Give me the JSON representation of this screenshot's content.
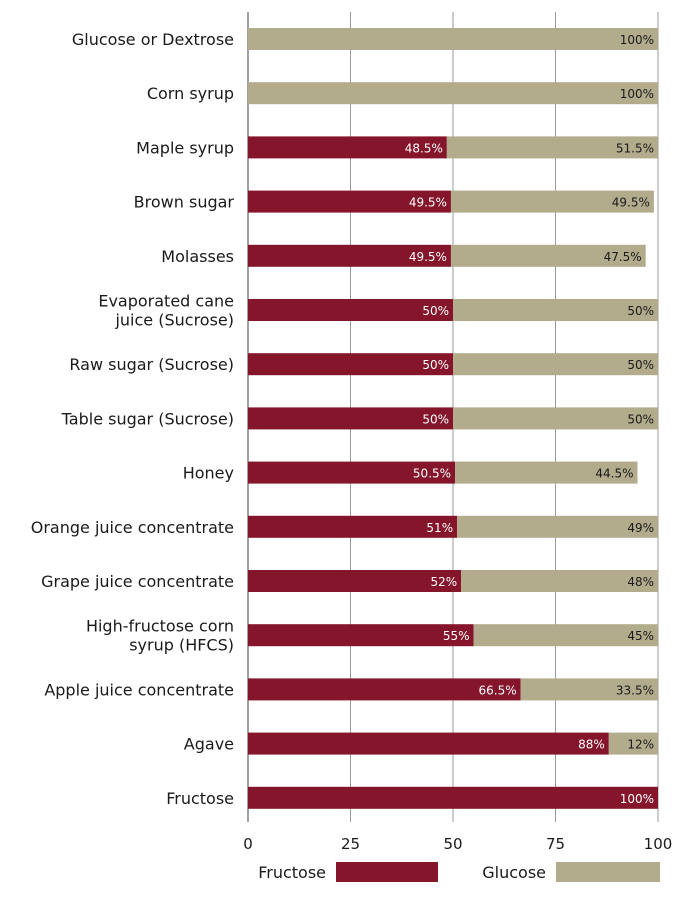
{
  "chart_data": {
    "type": "bar",
    "orientation": "horizontal",
    "stacked": true,
    "xlim": [
      0,
      100
    ],
    "xticks": [
      "0",
      "25",
      "50",
      "75",
      "100"
    ],
    "grid": true,
    "legend_position": "bottom",
    "categories": [
      "Glucose or Dextrose",
      "Corn syrup",
      "Maple syrup",
      "Brown sugar",
      "Molasses",
      "Evaporated cane juice (Sucrose)",
      "Raw sugar (Sucrose)",
      "Table sugar (Sucrose)",
      "Honey",
      "Orange juice concentrate",
      "Grape juice concentrate",
      "High-fructose corn syrup (HFCS)",
      "Apple juice concentrate",
      "Agave",
      "Fructose"
    ],
    "category_lines": [
      [
        "Glucose or Dextrose"
      ],
      [
        "Corn syrup"
      ],
      [
        "Maple syrup"
      ],
      [
        "Brown sugar"
      ],
      [
        "Molasses"
      ],
      [
        "Evaporated cane",
        "juice (Sucrose)"
      ],
      [
        "Raw sugar (Sucrose)"
      ],
      [
        "Table sugar (Sucrose)"
      ],
      [
        "Honey"
      ],
      [
        "Orange juice concentrate"
      ],
      [
        "Grape juice concentrate"
      ],
      [
        "High-fructose corn",
        "syrup (HFCS)"
      ],
      [
        "Apple juice concentrate"
      ],
      [
        "Agave"
      ],
      [
        "Fructose"
      ]
    ],
    "series": [
      {
        "name": "Fructose",
        "color": "#85152a",
        "label_color": "#ffffff",
        "values": [
          0,
          0,
          48.5,
          49.5,
          49.5,
          50,
          50,
          50,
          50.5,
          51,
          52,
          55,
          66.5,
          88,
          100
        ],
        "labels": [
          "",
          "",
          "48.5%",
          "49.5%",
          "49.5%",
          "50%",
          "50%",
          "50%",
          "50.5%",
          "51%",
          "52%",
          "55%",
          "66.5%",
          "88%",
          "100%"
        ]
      },
      {
        "name": "Glucose",
        "color": "#b2ab8c",
        "label_color": "#1a1a1a",
        "values": [
          100,
          100,
          51.5,
          49.5,
          47.5,
          50,
          50,
          50,
          44.5,
          49,
          48,
          45,
          33.5,
          12,
          0
        ],
        "labels": [
          "100%",
          "100%",
          "51.5%",
          "49.5%",
          "47.5%",
          "50%",
          "50%",
          "50%",
          "44.5%",
          "49%",
          "48%",
          "45%",
          "33.5%",
          "12%",
          ""
        ]
      }
    ]
  }
}
